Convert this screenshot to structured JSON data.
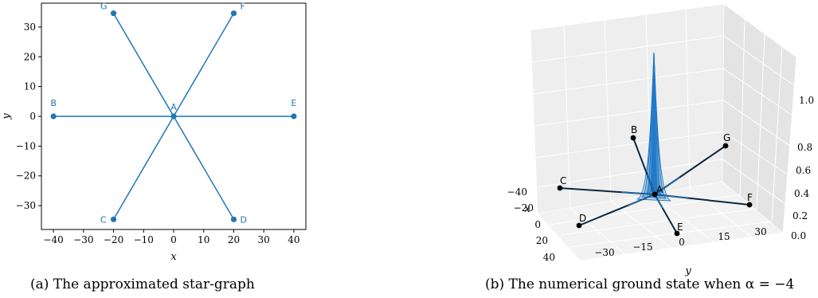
{
  "captions": {
    "a": "(a) The approximated star-graph",
    "b": "(b) The numerical ground state when α = −4"
  },
  "colors": {
    "edge": "#1f77b4",
    "node": "#1f77b4",
    "dark": "#0a2840",
    "peak": "#1f78c8"
  },
  "chart_data": [
    {
      "type": "scatter",
      "title": "",
      "xlabel": "x",
      "ylabel": "y",
      "xlim": [
        -44,
        44
      ],
      "ylim": [
        -38,
        38
      ],
      "xticks": [
        -40,
        -30,
        -20,
        -10,
        0,
        10,
        20,
        30,
        40
      ],
      "yticks": [
        -30,
        -20,
        -10,
        0,
        10,
        20,
        30
      ],
      "grid": false,
      "nodes": [
        {
          "name": "A",
          "x": 0,
          "y": 0
        },
        {
          "name": "B",
          "x": -40,
          "y": 0
        },
        {
          "name": "C",
          "x": -20,
          "y": -34.6
        },
        {
          "name": "D",
          "x": 20,
          "y": -34.6
        },
        {
          "name": "E",
          "x": 40,
          "y": 0
        },
        {
          "name": "F",
          "x": 20,
          "y": 34.6
        },
        {
          "name": "G",
          "x": -20,
          "y": 34.6
        }
      ],
      "edges": [
        [
          "A",
          "B"
        ],
        [
          "A",
          "C"
        ],
        [
          "A",
          "D"
        ],
        [
          "A",
          "E"
        ],
        [
          "A",
          "F"
        ],
        [
          "A",
          "G"
        ]
      ]
    },
    {
      "type": "surface3d",
      "title": "",
      "xlabel": "x",
      "ylabel": "y",
      "xticks": [
        -40,
        -20,
        0,
        20,
        40
      ],
      "yticks": [
        -30,
        -15,
        0,
        15,
        30
      ],
      "zticks": [
        "0.0",
        "0.2",
        "0.4",
        "0.6",
        "0.8",
        "1.0"
      ],
      "nodes": [
        "A",
        "B",
        "C",
        "D",
        "E",
        "F",
        "G"
      ],
      "peak_value": 1.0,
      "grid": true
    }
  ]
}
